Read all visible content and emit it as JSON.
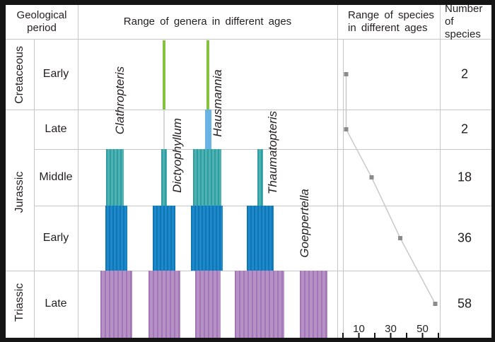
{
  "palette": {
    "text": "#231f20",
    "border": "#151515",
    "grid": "#c6c6c8",
    "green_cretaceous": "#86c140",
    "lightblue_late_jurassic": "#6ab3e2",
    "teal_middle_jurassic": "#4fb2b2",
    "teal_middle_jurassic_dark": "#2d9da1",
    "blue_early_jurassic": "#1d89cb",
    "blue_early_jurassic_dark": "#0e76b4",
    "purple_late_triassic": "#b691c5",
    "purple_late_triassic_dark": "#a276b6",
    "species_marker": "#8b8b8d",
    "species_line": "#c9c9cb",
    "connector": "#d7d7d9"
  },
  "headers": {
    "geological_period": "Geological period",
    "range_of_genera": "Range of genera in different ages",
    "range_of_species": "Range of species in different ages",
    "number_of_species": "Number of species"
  },
  "periods": [
    {
      "name": "Cretaceous"
    },
    {
      "name": "Jurassic"
    },
    {
      "name": "Triassic"
    }
  ],
  "rows": [
    {
      "period": "Cretaceous",
      "epoch": "Early",
      "number_of_species": 2
    },
    {
      "period": "Jurassic",
      "epoch": "Late",
      "number_of_species": 2
    },
    {
      "period": "Jurassic",
      "epoch": "Middle",
      "number_of_species": 18
    },
    {
      "period": "Jurassic",
      "epoch": "Early",
      "number_of_species": 36
    },
    {
      "period": "Triassic",
      "epoch": "Late",
      "number_of_species": 58
    }
  ],
  "genera": [
    {
      "name": "Clathropteris",
      "first_age": "Late Triassic",
      "last_age": "Middle Jurassic"
    },
    {
      "name": "Dictyophyllum",
      "first_age": "Late Triassic",
      "last_age": "Early Cretaceous"
    },
    {
      "name": "Hausmannia",
      "first_age": "Late Triassic",
      "last_age": "Early Cretaceous"
    },
    {
      "name": "Thaumatopteris",
      "first_age": "Late Triassic",
      "last_age": "Middle Jurassic"
    },
    {
      "name": "Goeppertella",
      "first_age": "Late Triassic",
      "last_age": "Late Triassic"
    }
  ],
  "chart_data": [
    {
      "type": "bar",
      "title": "Range of genera in different ages",
      "orientation": "vertical stratigraphic range bars",
      "age_rows_top_to_bottom": [
        "Early Cretaceous",
        "Late Jurassic",
        "Middle Jurassic",
        "Early Jurassic",
        "Late Triassic"
      ],
      "series": [
        {
          "name": "Clathropteris",
          "ages_present": [
            "Late Triassic",
            "Early Jurassic",
            "Middle Jurassic"
          ]
        },
        {
          "name": "Dictyophyllum",
          "ages_present": [
            "Late Triassic",
            "Early Jurassic",
            "Middle Jurassic",
            "Late Jurassic",
            "Early Cretaceous"
          ]
        },
        {
          "name": "Hausmannia",
          "ages_present": [
            "Late Triassic",
            "Early Jurassic",
            "Middle Jurassic",
            "Late Jurassic",
            "Early Cretaceous"
          ]
        },
        {
          "name": "Thaumatopteris",
          "ages_present": [
            "Late Triassic",
            "Early Jurassic",
            "Middle Jurassic"
          ]
        },
        {
          "name": "Goeppertella",
          "ages_present": [
            "Late Triassic"
          ]
        }
      ],
      "legend": "off",
      "grid": "light horizontal age boundaries"
    },
    {
      "type": "line",
      "title": "Range of species in different ages",
      "categories": [
        "Early Cretaceous",
        "Late Jurassic",
        "Middle Jurassic",
        "Early Jurassic",
        "Late Triassic"
      ],
      "values": [
        2,
        2,
        18,
        36,
        58
      ],
      "xlabel": "",
      "ylabel": "",
      "xlim": [
        0,
        62
      ],
      "xticks_labeled": [
        10,
        30,
        50
      ],
      "xticks_all": [
        0,
        10,
        20,
        30,
        40,
        50,
        60
      ],
      "marker": "gray square",
      "legend": "off"
    }
  ]
}
